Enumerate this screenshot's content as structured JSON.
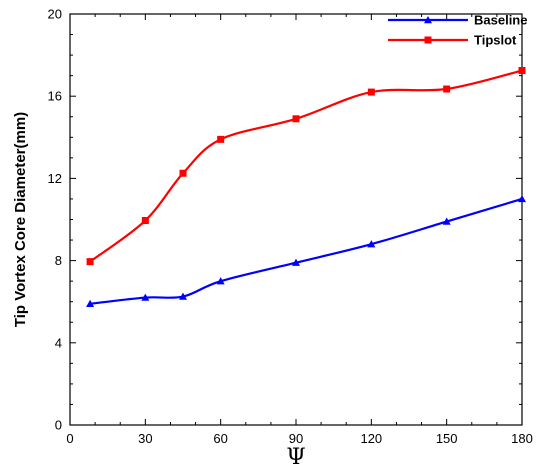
{
  "chart_data": {
    "type": "line",
    "title": "",
    "xlabel": "Ψ",
    "ylabel": "Tip Vortex Core Diameter(mm)",
    "xlim": [
      0,
      180
    ],
    "ylim": [
      0,
      20
    ],
    "x_ticks": [
      0,
      30,
      60,
      90,
      120,
      150,
      180
    ],
    "y_ticks": [
      0,
      4,
      8,
      12,
      16,
      20
    ],
    "grid": false,
    "legend_position": "top-right",
    "series": [
      {
        "name": "Baseline",
        "color": "#0000ff",
        "marker": "triangle",
        "x": [
          8,
          30,
          45,
          60,
          90,
          120,
          150,
          180
        ],
        "values": [
          5.9,
          6.2,
          6.25,
          7.0,
          7.9,
          8.8,
          9.9,
          11.0
        ]
      },
      {
        "name": "Tipslot",
        "color": "#ff0000",
        "marker": "square",
        "x": [
          8,
          30,
          45,
          60,
          90,
          120,
          150,
          180
        ],
        "values": [
          7.95,
          9.95,
          12.25,
          13.9,
          14.9,
          16.2,
          16.35,
          17.25
        ]
      }
    ]
  }
}
